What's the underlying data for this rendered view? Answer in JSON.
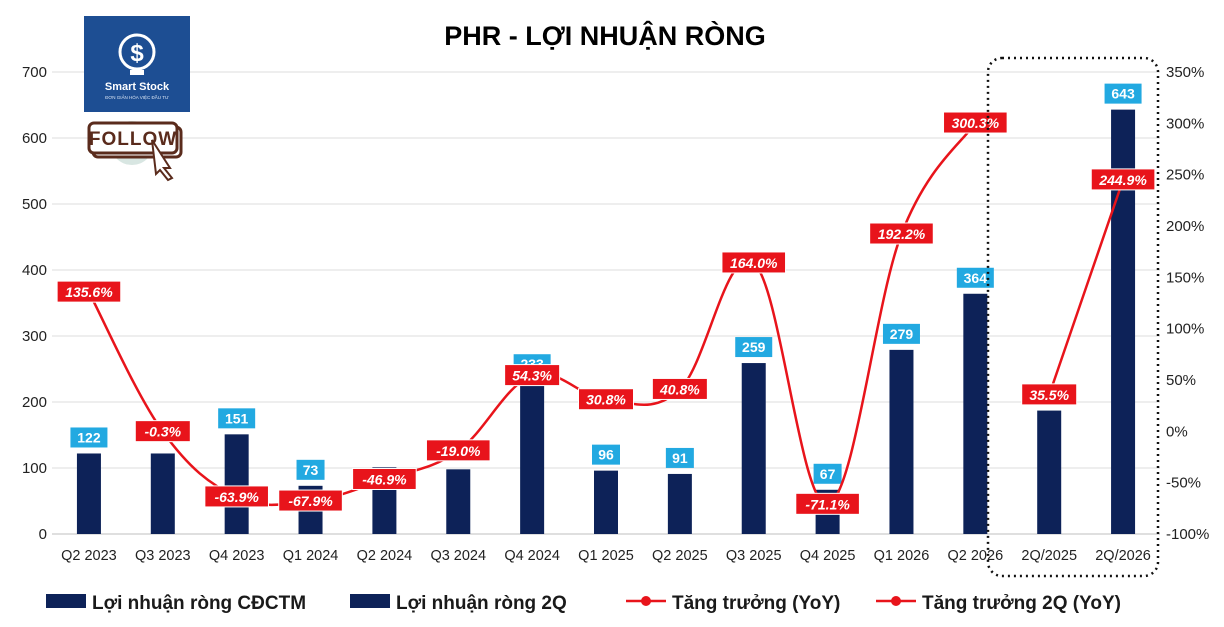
{
  "logo": {
    "brand": "Smart Stock",
    "tagline": "ĐƠN GIẢN HÓA VIỆC ĐẦU TƯ",
    "button": "FOLLOW"
  },
  "chart_data": {
    "type": "bar",
    "title": "PHR - LỢI NHUẬN RÒNG",
    "categories": [
      "Q2 2023",
      "Q3 2023",
      "Q4 2023",
      "Q1 2024",
      "Q2 2024",
      "Q3 2024",
      "Q4 2024",
      "Q1 2025",
      "Q2 2025",
      "Q3 2025",
      "Q4 2025",
      "Q1 2026",
      "Q2 2026",
      "2Q/2025",
      "2Q/2026"
    ],
    "y_left": {
      "min": 0,
      "max": 700,
      "ticks": [
        "0",
        "100",
        "200",
        "300",
        "400",
        "500",
        "600",
        "700"
      ]
    },
    "y_right": {
      "min": -100,
      "max": 350,
      "ticks": [
        "-100%",
        "-50%",
        "0%",
        "50%",
        "100%",
        "150%",
        "200%",
        "250%",
        "300%",
        "350%"
      ]
    },
    "series": [
      {
        "name": "Lợi nhuận ròng CĐCTM",
        "kind": "bar",
        "axis": "left",
        "color": "#0d2258",
        "values": [
          122,
          122,
          151,
          73,
          101,
          98,
          233,
          96,
          91,
          259,
          67,
          279,
          364,
          null,
          null
        ],
        "labels": [
          "122",
          "",
          "151",
          "73",
          "",
          "",
          "233",
          "96",
          "91",
          "259",
          "67",
          "279",
          "364",
          "",
          ""
        ]
      },
      {
        "name": "Lợi nhuận ròng 2Q",
        "kind": "bar",
        "axis": "left",
        "color": "#0d2258",
        "values": [
          null,
          null,
          null,
          null,
          null,
          null,
          null,
          null,
          null,
          null,
          null,
          null,
          null,
          187,
          643
        ],
        "labels": [
          "",
          "",
          "",
          "",
          "",
          "",
          "",
          "",
          "",
          "",
          "",
          "",
          "",
          "",
          "643"
        ]
      },
      {
        "name": "Tăng trưởng (YoY)",
        "kind": "line",
        "axis": "right",
        "color": "#e8141b",
        "values": [
          135.6,
          -0.3,
          -63.9,
          -67.9,
          -46.9,
          -19.0,
          54.3,
          30.8,
          40.8,
          164.0,
          -71.1,
          192.2,
          300.3,
          null,
          null
        ],
        "labels": [
          "135.6%",
          "-0.3%",
          "-63.9%",
          "-67.9%",
          "-46.9%",
          "-19.0%",
          "54.3%",
          "30.8%",
          "40.8%",
          "164.0%",
          "-71.1%",
          "192.2%",
          "300.3%",
          "",
          ""
        ]
      },
      {
        "name": "Tăng trưởng 2Q (YoY)",
        "kind": "line",
        "axis": "right",
        "color": "#e8141b",
        "values": [
          null,
          null,
          null,
          null,
          null,
          null,
          null,
          null,
          null,
          null,
          null,
          null,
          null,
          35.5,
          244.9
        ],
        "labels": [
          "",
          "",
          "",
          "",
          "",
          "",
          "",
          "",
          "",
          "",
          "",
          "",
          "",
          "35.5%",
          "244.9%"
        ]
      }
    ],
    "legend_position": "bottom",
    "grid": true,
    "colors": {
      "bar": "#0d2258",
      "bar_label_bg": "#22a9e1",
      "line": "#e8141b",
      "pct_label_bg": "#e8141b",
      "grid": "#dcdcdc"
    }
  }
}
